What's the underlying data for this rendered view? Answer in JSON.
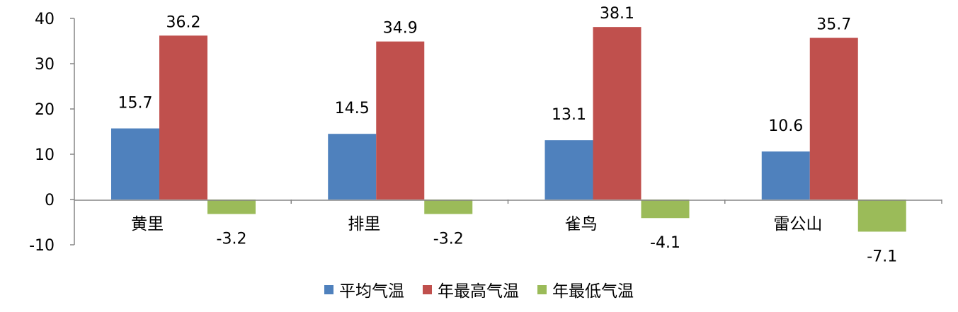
{
  "chart_data": {
    "type": "bar",
    "categories": [
      "黄里",
      "排里",
      "雀鸟",
      "雷公山"
    ],
    "series": [
      {
        "name": "平均气温",
        "values": [
          15.7,
          14.5,
          13.1,
          10.6
        ],
        "color": "#4f81bd",
        "labels": [
          "15.7",
          "14.5",
          "13.1",
          "10.6"
        ]
      },
      {
        "name": "年最高气温",
        "values": [
          36.2,
          34.9,
          38.1,
          35.7
        ],
        "color": "#c0504d",
        "labels": [
          "36.2",
          "34.9",
          "38.1",
          "35.7"
        ]
      },
      {
        "name": "年最低气温",
        "values": [
          -3.2,
          -3.2,
          -4.1,
          -7.1
        ],
        "color": "#9bbb59",
        "labels": [
          "-3.2",
          "-3.2",
          "-4.1",
          "-7.1"
        ]
      }
    ],
    "ylim": [
      -10,
      40
    ],
    "yticks": [
      "40",
      "30",
      "20",
      "10",
      "0",
      "-10"
    ],
    "grid": false,
    "legend": "bottom"
  }
}
